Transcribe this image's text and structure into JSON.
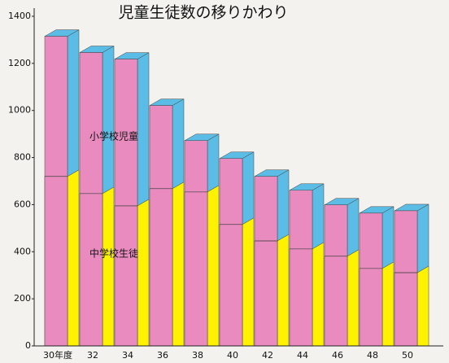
{
  "chart_data": {
    "type": "bar3d",
    "title": "児童生徒数の移りかわり",
    "categories": [
      "30年度",
      "32",
      "34",
      "36",
      "38",
      "40",
      "42",
      "44",
      "46",
      "48",
      "50"
    ],
    "series": [
      {
        "name": "小学校児童",
        "color": "#5bbde6",
        "values": [
          1315,
          1246,
          1218,
          1021,
          872,
          796,
          720,
          661,
          599,
          564,
          574
        ]
      },
      {
        "name": "中学校生徒",
        "color": "#fff200",
        "values": [
          720,
          647,
          595,
          668,
          654,
          516,
          446,
          412,
          381,
          329,
          311
        ]
      }
    ],
    "front_color": "#e98bbf",
    "ylim": [
      0,
      1400
    ],
    "yticks": [
      0,
      200,
      400,
      600,
      800,
      1000,
      1200,
      1400
    ]
  }
}
